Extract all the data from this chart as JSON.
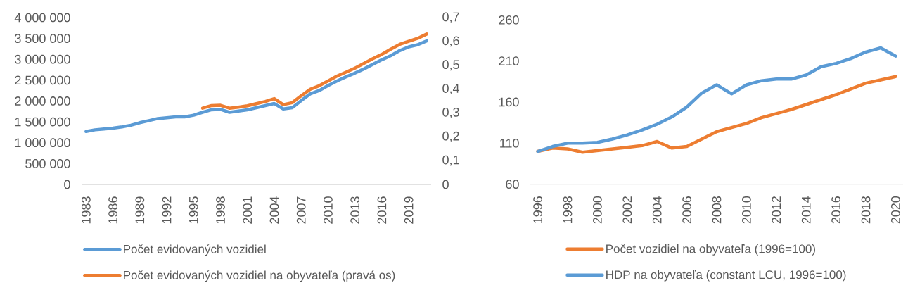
{
  "chart_data": [
    {
      "type": "line",
      "x": [
        1983,
        1984,
        1985,
        1986,
        1987,
        1988,
        1989,
        1990,
        1991,
        1992,
        1993,
        1994,
        1995,
        1996,
        1997,
        1998,
        1999,
        2000,
        2001,
        2002,
        2003,
        2004,
        2005,
        2006,
        2007,
        2008,
        2009,
        2010,
        2011,
        2012,
        2013,
        2014,
        2015,
        2016,
        2017,
        2018,
        2019,
        2020,
        2021
      ],
      "xlim": [
        1982.5,
        2021.5
      ],
      "xticks": [
        1983,
        1986,
        1989,
        1992,
        1995,
        1998,
        2001,
        2004,
        2007,
        2010,
        2013,
        2016,
        2019
      ],
      "ylim": [
        0,
        4000000
      ],
      "yticks": [
        0,
        {
          "value": 500000,
          "label": "500 000"
        },
        {
          "value": 1000000,
          "label": "1 000 000"
        },
        {
          "value": 1500000,
          "label": "1 500 000"
        },
        {
          "value": 2000000,
          "label": "2 000 000"
        },
        {
          "value": 2500000,
          "label": "2 500 000"
        },
        {
          "value": 3000000,
          "label": "3 000 000"
        },
        {
          "value": 3500000,
          "label": "3 500 000"
        },
        {
          "value": 4000000,
          "label": "4 000 000"
        }
      ],
      "y2lim": [
        0,
        0.7
      ],
      "y2ticks": [
        0,
        {
          "value": 0.1,
          "label": "0,1"
        },
        {
          "value": 0.2,
          "label": "0,2"
        },
        {
          "value": 0.3,
          "label": "0,3"
        },
        {
          "value": 0.4,
          "label": "0,4"
        },
        {
          "value": 0.5,
          "label": "0,5"
        },
        {
          "value": 0.6,
          "label": "0,6"
        },
        {
          "value": 0.7,
          "label": "0,7"
        }
      ],
      "series": [
        {
          "name": "Počet evidovaných vozidiel",
          "color": "#5b9bd5",
          "values": [
            1270000,
            1310000,
            1330000,
            1350000,
            1380000,
            1420000,
            1480000,
            1530000,
            1580000,
            1600000,
            1620000,
            1620000,
            1660000,
            1730000,
            1790000,
            1800000,
            1730000,
            1760000,
            1790000,
            1840000,
            1890000,
            1940000,
            1810000,
            1840000,
            2010000,
            2170000,
            2250000,
            2370000,
            2480000,
            2580000,
            2670000,
            2770000,
            2880000,
            2990000,
            3090000,
            3210000,
            3300000,
            3350000,
            3440000
          ]
        },
        {
          "name": "Počet evidovaných vozidiel na obyvateľa (pravá os)",
          "color": "#ed7d31",
          "axis": "y2",
          "x": [
            1996,
            1997,
            1998,
            1999,
            2000,
            2001,
            2002,
            2003,
            2004,
            2005,
            2006,
            2007,
            2008,
            2009,
            2010,
            2011,
            2012,
            2013,
            2014,
            2015,
            2016,
            2017,
            2018,
            2019,
            2020,
            2021
          ],
          "values": [
            0.32,
            0.331,
            0.332,
            0.32,
            0.324,
            0.33,
            0.339,
            0.348,
            0.36,
            0.335,
            0.343,
            0.372,
            0.399,
            0.414,
            0.434,
            0.455,
            0.471,
            0.488,
            0.508,
            0.528,
            0.546,
            0.568,
            0.588,
            0.601,
            0.613,
            0.631
          ]
        }
      ],
      "legend": "bottom",
      "marker": "none",
      "line_style": "solid",
      "grid": false
    },
    {
      "type": "line",
      "x": [
        1996,
        1997,
        1998,
        1999,
        2000,
        2001,
        2002,
        2003,
        2004,
        2005,
        2006,
        2007,
        2008,
        2009,
        2010,
        2011,
        2012,
        2013,
        2014,
        2015,
        2016,
        2017,
        2018,
        2019,
        2020
      ],
      "xlim": [
        1995.5,
        2020.5
      ],
      "xticks": [
        1996,
        1998,
        2000,
        2002,
        2004,
        2006,
        2008,
        2010,
        2012,
        2014,
        2016,
        2018,
        2020
      ],
      "ylim": [
        60,
        260
      ],
      "yticks": [
        60,
        110,
        160,
        210,
        260
      ],
      "series": [
        {
          "name": "Počet vozidiel na obyvateľa (1996=100)",
          "color": "#ed7d31",
          "values": [
            100,
            104,
            103,
            99,
            101,
            103,
            105,
            107,
            112,
            104,
            106,
            115,
            124,
            129,
            134,
            141,
            146,
            151,
            157,
            163,
            169,
            176,
            183,
            187,
            191
          ]
        },
        {
          "name": "HDP na obyvateľa (constant LCU, 1996=100)",
          "color": "#5b9bd5",
          "values": [
            100,
            106,
            110,
            110,
            111,
            115,
            120,
            126,
            133,
            142,
            154,
            171,
            181,
            170,
            181,
            186,
            188,
            188,
            193,
            203,
            207,
            213,
            221,
            226,
            216
          ]
        }
      ],
      "legend": "bottom",
      "marker": "none",
      "line_style": "solid",
      "grid": false
    }
  ]
}
